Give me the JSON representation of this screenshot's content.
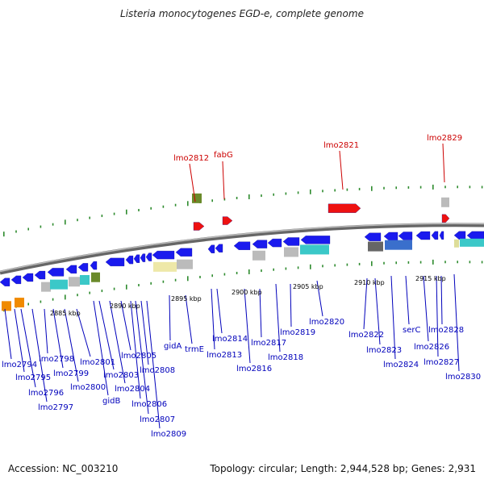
{
  "title": "Listeria monocytogenes EGD-e, complete genome",
  "footer": {
    "accession": "Accession: NC_003210",
    "summary": "Topology: circular; Length: 2,944,528 bp; Genes: 2,931"
  },
  "colors": {
    "backbone": "#888888",
    "forward_gene": "#1a1aee",
    "reverse_gene": "#1a1aee",
    "rna_gene": "#ee1111",
    "red_label": "#cc0000",
    "blue_label": "#0000bb",
    "tick": "#2e8b2e"
  },
  "scale_labels": [
    "2885 kbp",
    "2890 kbp",
    "2895 kbp",
    "2900 kbp",
    "2905 kbp",
    "2910 kbp",
    "2915 kbp"
  ],
  "red_labels": [
    "lmo2812",
    "fabG",
    "lmo2821",
    "lmo2829"
  ],
  "blue_labels": [
    "lmo2794",
    "lmo2795",
    "lmo2796",
    "lmo2797",
    "lmo2798",
    "lmo2799",
    "lmo2800",
    "lmo2801",
    "gidB",
    "lmo2803",
    "lmo2804",
    "lmo2805",
    "lmo2806",
    "lmo2807",
    "lmo2808",
    "lmo2809",
    "gidA",
    "trmE",
    "lmo2813",
    "lmo2814",
    "lmo2816",
    "lmo2817",
    "lmo2818",
    "lmo2819",
    "lmo2820",
    "lmo2822",
    "lmo2823",
    "lmo2824",
    "serC",
    "lmo2826",
    "lmo2827",
    "lmo2828",
    "lmo2830"
  ]
}
